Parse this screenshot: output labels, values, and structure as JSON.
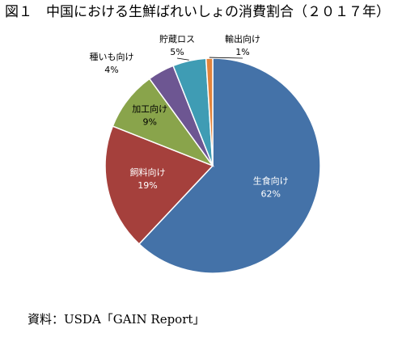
{
  "title": "図１　中国における生鮮ばれいしょの消費割合（２０１７年）",
  "source": "資料：USDA「GAIN Report」",
  "chart_data": {
    "type": "pie",
    "title": "図１　中国における生鮮ばれいしょの消費割合（２０１７年）",
    "legend": "none",
    "slices": [
      {
        "label": "生食向け",
        "value": 62,
        "display": "62%",
        "color": "#4472a8"
      },
      {
        "label": "飼料向け",
        "value": 19,
        "display": "19%",
        "color": "#a5403c"
      },
      {
        "label": "加工向け",
        "value": 9,
        "display": "9%",
        "color": "#89a44b"
      },
      {
        "label": "種いも向け",
        "value": 4,
        "display": "4%",
        "color": "#6d5692"
      },
      {
        "label": "貯蔵ロス",
        "value": 5,
        "display": "5%",
        "color": "#3f9cb4"
      },
      {
        "label": "輸出向け",
        "value": 1,
        "display": "1%",
        "color": "#e2843c"
      }
    ]
  }
}
